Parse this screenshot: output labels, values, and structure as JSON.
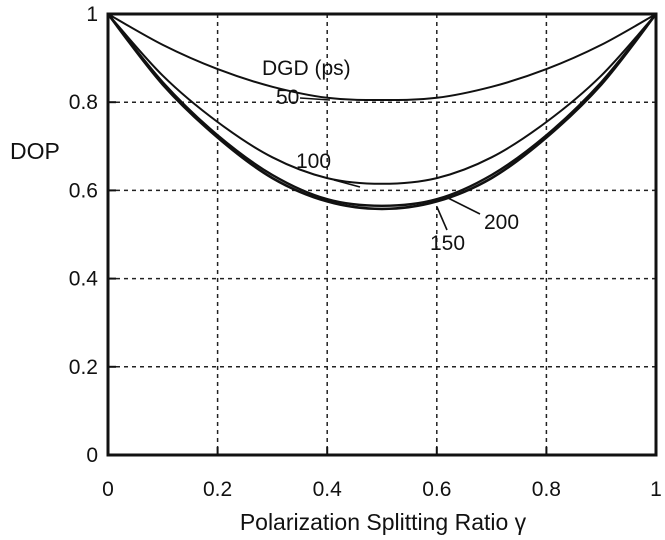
{
  "chart_data": {
    "type": "line",
    "title": "",
    "xlabel": "Polarization Splitting Ratio γ",
    "ylabel": "DOP",
    "xlim": [
      0,
      1
    ],
    "ylim": [
      0,
      1
    ],
    "x_ticks": [
      "0",
      "0.2",
      "0.4",
      "0.6",
      "0.8",
      "1"
    ],
    "y_ticks": [
      "0",
      "0.2",
      "0.4",
      "0.6",
      "0.8",
      "1"
    ],
    "grid": "dashed",
    "legend_title": "DGD (ps)",
    "x": [
      0,
      0.1,
      0.2,
      0.3,
      0.4,
      0.5,
      0.6,
      0.7,
      0.8,
      0.9,
      1.0
    ],
    "series": [
      {
        "name": "50",
        "values": [
          1.0,
          0.93,
          0.875,
          0.835,
          0.81,
          0.805,
          0.81,
          0.835,
          0.875,
          0.93,
          1.0
        ]
      },
      {
        "name": "100",
        "values": [
          1.0,
          0.86,
          0.755,
          0.675,
          0.628,
          0.615,
          0.628,
          0.675,
          0.755,
          0.86,
          1.0
        ]
      },
      {
        "name": "150",
        "values": [
          1.0,
          0.845,
          0.725,
          0.635,
          0.58,
          0.565,
          0.58,
          0.635,
          0.725,
          0.845,
          1.0
        ]
      },
      {
        "name": "200",
        "values": [
          1.0,
          0.84,
          0.72,
          0.628,
          0.575,
          0.558,
          0.575,
          0.628,
          0.72,
          0.84,
          1.0
        ]
      }
    ]
  }
}
